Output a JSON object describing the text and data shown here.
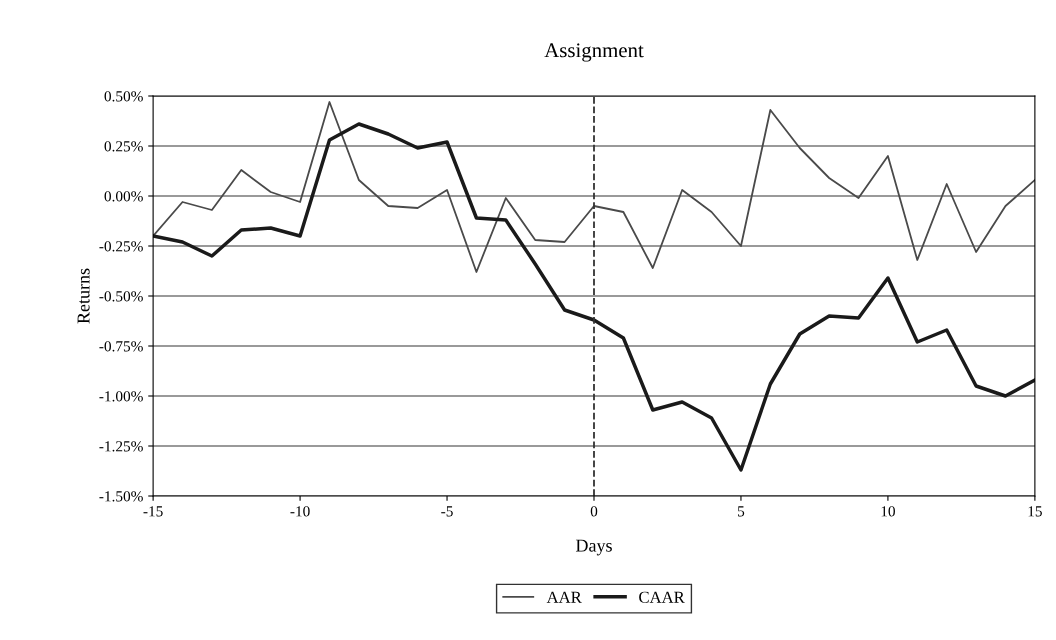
{
  "chart_data": {
    "type": "line",
    "title": "Assignment",
    "xlabel": "Days",
    "ylabel": "Returns",
    "x": [
      -15,
      -14,
      -13,
      -12,
      -11,
      -10,
      -9,
      -8,
      -7,
      -6,
      -5,
      -4,
      -3,
      -2,
      -1,
      0,
      1,
      2,
      3,
      4,
      5,
      6,
      7,
      8,
      9,
      10,
      11,
      12,
      13,
      14,
      15
    ],
    "series": [
      {
        "name": "AAR",
        "color": "#4a4a4a",
        "values": [
          -0.2,
          -0.03,
          -0.07,
          0.13,
          0.02,
          -0.03,
          0.47,
          0.08,
          -0.05,
          -0.06,
          0.03,
          -0.38,
          -0.01,
          -0.22,
          -0.23,
          -0.05,
          -0.08,
          -0.36,
          0.03,
          -0.08,
          -0.25,
          0.43,
          0.24,
          0.09,
          -0.01,
          0.2,
          -0.32,
          0.06,
          -0.28,
          -0.05,
          0.08
        ]
      },
      {
        "name": "CAAR",
        "color": "#1a1a1a",
        "values": [
          -0.2,
          -0.23,
          -0.3,
          -0.17,
          -0.16,
          -0.2,
          0.28,
          0.36,
          0.31,
          0.24,
          0.27,
          -0.11,
          -0.12,
          -0.34,
          -0.57,
          -0.62,
          -0.71,
          -1.07,
          -1.03,
          -1.11,
          -1.37,
          -0.94,
          -0.69,
          -0.6,
          -0.61,
          -0.41,
          -0.73,
          -0.67,
          -0.95,
          -1.0,
          -0.92
        ]
      }
    ],
    "xlim": [
      -15,
      15
    ],
    "xticks": [
      -15,
      -10,
      -5,
      0,
      5,
      10,
      15
    ],
    "ylim": [
      -1.5,
      0.5
    ],
    "yticks": [
      {
        "value": -1.5,
        "label": "-1.50%"
      },
      {
        "value": -1.25,
        "label": "-1.25%"
      },
      {
        "value": -1.0,
        "label": "-1.00%"
      },
      {
        "value": -0.75,
        "label": "-0.75%"
      },
      {
        "value": -0.5,
        "label": "-0.50%"
      },
      {
        "value": -0.25,
        "label": "-0.25%"
      },
      {
        "value": 0,
        "label": "0.00%"
      },
      {
        "value": 0.25,
        "label": "0.25%"
      },
      {
        "value": 0.5,
        "label": "0.50%"
      }
    ],
    "ref_lines": [
      {
        "axis": "x",
        "value": 0,
        "color": "#333333",
        "line_style": "dashed"
      }
    ],
    "grid": "y",
    "legend": "bottom",
    "marker": "none",
    "line_style": "solid"
  }
}
